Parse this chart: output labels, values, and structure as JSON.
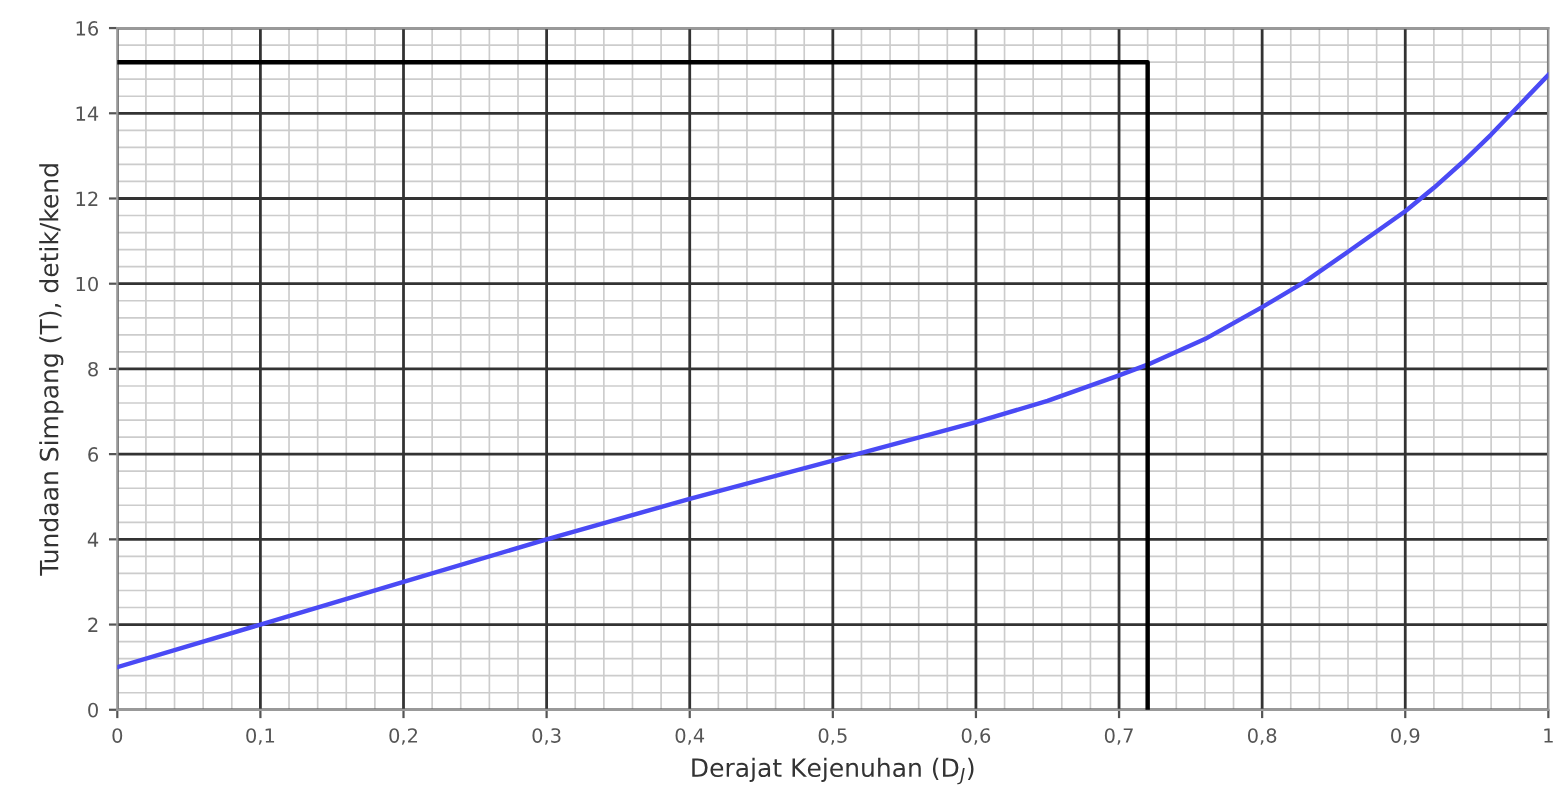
{
  "chart_data": {
    "type": "line",
    "xlabel": "Derajat Kejenuhan (D$_{J}$)",
    "ylabel": "Tundaan Simpang (T), detik/kend",
    "series": [
      {
        "color": "#4a4af5",
        "x": [
          0,
          0.1,
          0.2,
          0.3,
          0.4,
          0.5,
          0.6,
          0.65,
          0.7,
          0.72,
          0.76,
          0.8,
          0.83,
          0.86,
          0.9,
          0.92,
          0.94,
          0.96,
          0.98,
          1.0
        ],
        "values": [
          1,
          2,
          3,
          4,
          4.95,
          5.85,
          6.75,
          7.25,
          7.85,
          8.1,
          8.7,
          9.45,
          10.05,
          10.75,
          11.7,
          12.25,
          12.85,
          13.5,
          14.2,
          14.9
        ]
      },
      {
        "color": "#000000",
        "x": [
          0,
          0.72,
          0.72
        ],
        "values": [
          15.2,
          15.2,
          0
        ]
      }
    ],
    "xlim": [
      0,
      1
    ],
    "ylim": [
      0,
      16
    ],
    "xticks": [
      0,
      {
        "value": 0.1,
        "label": "0,1"
      },
      {
        "value": 0.2,
        "label": "0,2"
      },
      {
        "value": 0.3,
        "label": "0,3"
      },
      {
        "value": 0.4,
        "label": "0,4"
      },
      {
        "value": 0.5,
        "label": "0,5"
      },
      {
        "value": 0.6,
        "label": "0,6"
      },
      {
        "value": 0.7,
        "label": "0,7"
      },
      {
        "value": 0.8,
        "label": "0,8"
      },
      {
        "value": 0.9,
        "label": "0,9"
      },
      1
    ],
    "yticks": [
      0,
      2,
      4,
      6,
      8,
      10,
      12,
      14,
      16
    ],
    "grid": true,
    "line_style": "solid",
    "marker": "none"
  }
}
